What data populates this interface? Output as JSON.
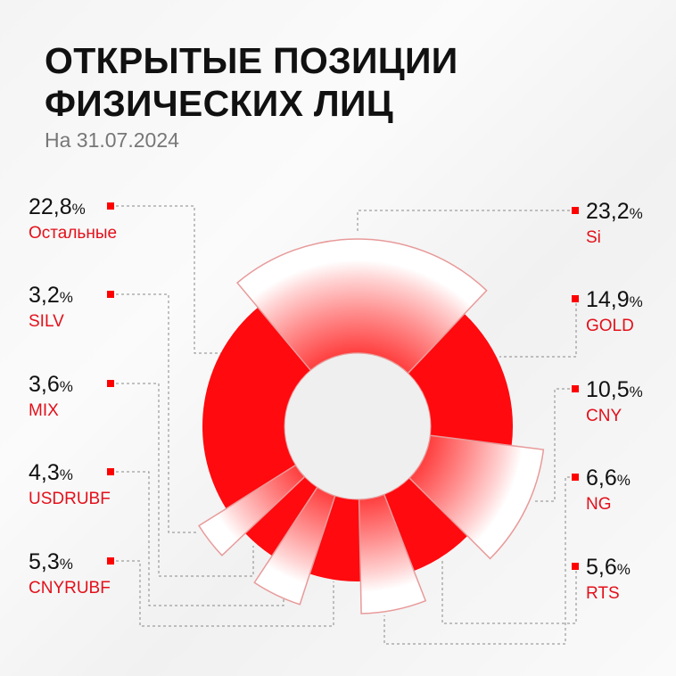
{
  "title_line1": "ОТКРЫТЫЕ ПОЗИЦИИ",
  "title_line2": "ФИЗИЧЕСКИХ ЛИЦ",
  "subtitle": "На 31.07.2024",
  "colors": {
    "accent": "#ff0a0f",
    "label_red": "#e3101a",
    "outline": "#e89a9a"
  },
  "chart_data": {
    "type": "pie",
    "title": "ОТКРЫТЫЕ ПОЗИЦИИ ФИЗИЧЕСКИХ ЛИЦ",
    "subtitle": "На 31.07.2024",
    "unit": "%",
    "slices": [
      {
        "name": "Si",
        "value": 23.2,
        "label": "23,2",
        "highlight": true
      },
      {
        "name": "GOLD",
        "value": 14.9,
        "label": "14,9",
        "highlight": false
      },
      {
        "name": "CNY",
        "value": 10.5,
        "label": "10,5",
        "highlight": true
      },
      {
        "name": "NG",
        "value": 6.6,
        "label": "6,6",
        "highlight": false
      },
      {
        "name": "RTS",
        "value": 5.6,
        "label": "5,6",
        "highlight": true
      },
      {
        "name": "CNYRUBF",
        "value": 5.3,
        "label": "5,3",
        "highlight": false
      },
      {
        "name": "USDRUBF",
        "value": 4.3,
        "label": "4,3",
        "highlight": true
      },
      {
        "name": "MIX",
        "value": 3.6,
        "label": "3,6",
        "highlight": false
      },
      {
        "name": "SILV",
        "value": 3.2,
        "label": "3,2",
        "highlight": true
      },
      {
        "name": "Остальные",
        "value": 22.8,
        "label": "22,8",
        "highlight": false
      }
    ],
    "pct_sign": "%"
  }
}
